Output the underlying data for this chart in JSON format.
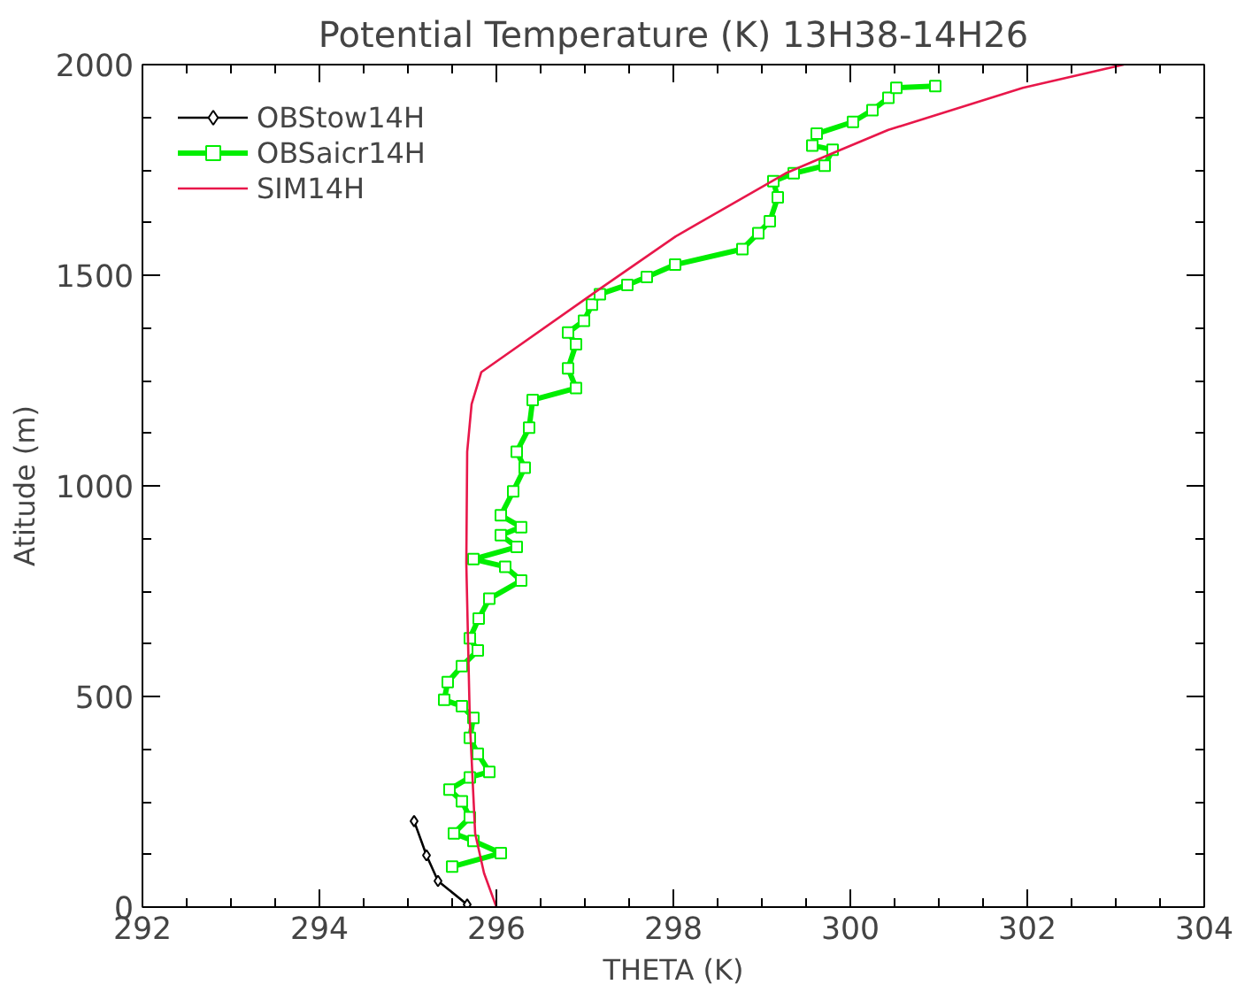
{
  "chart_data": {
    "type": "line",
    "title": "Potential Temperature (K) 13H38-14H26",
    "xlabel": "THETA (K)",
    "ylabel": "Atitude (m)",
    "xlim": [
      292,
      304
    ],
    "ylim": [
      0,
      2000
    ],
    "xticks": [
      292,
      294,
      296,
      298,
      300,
      302,
      304
    ],
    "yticks": [
      0,
      500,
      1000,
      1500,
      2000
    ],
    "grid": false,
    "legend": "top left",
    "series": [
      {
        "name": "OBStow14H",
        "color": "#000000",
        "marker": "diamond",
        "x": [
          295.67,
          295.34,
          295.21,
          295.07
        ],
        "values": [
          6,
          62,
          123,
          204
        ]
      },
      {
        "name": "OBSaicr14H",
        "color": "#00ee00",
        "marker": "square",
        "x": [
          295.5,
          296.05,
          295.74,
          295.52,
          295.7,
          295.61,
          295.47,
          295.7,
          295.92,
          295.79,
          295.7,
          295.74,
          295.61,
          295.41,
          295.45,
          295.61,
          295.79,
          295.7,
          295.8,
          295.92,
          296.28,
          296.1,
          295.74,
          296.23,
          296.05,
          296.28,
          296.05,
          296.19,
          296.32,
          296.23,
          296.37,
          296.41,
          296.9,
          296.81,
          296.9,
          296.81,
          296.99,
          297.08,
          297.17,
          297.48,
          297.7,
          298.02,
          298.78,
          298.96,
          299.09,
          299.18,
          299.13,
          299.36,
          299.71,
          299.8,
          299.57,
          299.62,
          300.03,
          300.25,
          300.43,
          300.52,
          300.96
        ],
        "values": [
          96,
          128,
          157,
          175,
          213,
          251,
          279,
          308,
          321,
          364,
          402,
          449,
          477,
          492,
          534,
          572,
          609,
          638,
          685,
          732,
          775,
          808,
          826,
          855,
          883,
          902,
          930,
          987,
          1043,
          1081,
          1138,
          1204,
          1232,
          1279,
          1336,
          1364,
          1392,
          1430,
          1455,
          1477,
          1496,
          1525,
          1562,
          1600,
          1628,
          1685,
          1723,
          1742,
          1760,
          1798,
          1808,
          1836,
          1864,
          1892,
          1921,
          1945,
          1949
        ]
      },
      {
        "name": "SIM14H",
        "color": "#e8174a",
        "marker": "none",
        "x": [
          296.0,
          295.86,
          295.76,
          295.7,
          295.66,
          295.67,
          295.72,
          295.83,
          297.13,
          298.04,
          299.27,
          299.85,
          300.43,
          301.95,
          303.09
        ],
        "values": [
          0,
          81,
          175,
          440,
          817,
          1081,
          1194,
          1270,
          1462,
          1594,
          1742,
          1794,
          1845,
          1945,
          2000
        ]
      }
    ]
  }
}
